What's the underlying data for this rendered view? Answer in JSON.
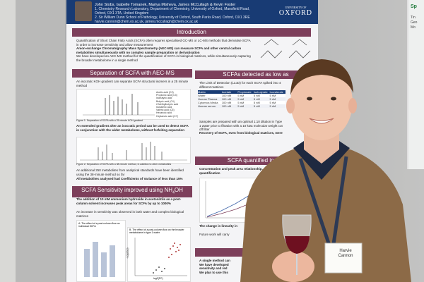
{
  "poster": {
    "affiliation_1": "1. Chemistry Research Laboratory, Department of Chemistry, University of Oxford, Mansfield Road, Oxford, OX1 3TA, United Kingdom",
    "affiliation_2": "2. Sir William Dunn School of Pathology, University of Oxford, South Parks Road, Oxford, OX1 3RE",
    "authors": "John Stobs, Isabelle Tomanek, Mariya Misheva, James McCullagh & Kevin Foster",
    "email": "harvie.cannon@chem.ox.ac.uk, james.mccullagh@chem.ox.ac.uk",
    "institution": "OXFORD",
    "institution_prefix": "UNIVERSITY OF",
    "intro_title": "Introduction",
    "intro_bullets": [
      "Quantification of Short Chain Fatty Acids (SCFA) often requires specialised GC-MS or LC-MS methods that derivatise SCFA in order to increase sensitivity and allow measurement",
      "Anion-exchange Chromatography Mass Spectrometry (AEC-MS) can measure SCFA and other central carbon metabolites simultaneously with no complex sample preparation or derivatisation",
      "We have developed an AEC-MS method for the quantification of SCFA in biological matrices, while simultaneously capturing the broader metabolome in a single method"
    ],
    "sep_title": "Separation of SCFA with AEC-MS",
    "sep_bullets": [
      "An isocratic KOH gradient can separate SCFA structural isomers in a 25 minute method",
      "An extended gradient after an isocratic period can be used to detect SCFA in conjunction with the wider metabolome, without forfeiting separation",
      "An additional 250 metabolites from analytical standards have been identified using the 38-minute method so far",
      "All metabolites analysed had Coefficients of Variance of less than 15%"
    ],
    "legend_items": [
      "Acetic acid (C2)",
      "Propionic acid (C3)",
      "Isobutyric acid",
      "Butyric acid (C4)",
      "2-Methylbutyric acid",
      "Isovaleric acid",
      "Valeric acid (C5)",
      "Hexanoic acid",
      "Heptanoic acid (C7)"
    ],
    "fig1_caption": "Figure 1: Separation of SCFA with a 25 minute KOH gradient",
    "fig2_caption": "Figure 2: Separation of SCFA with a 38 minute method, in addition to other metabolites",
    "nh4_title": "SCFA Sensitivity improved using NH",
    "nh4_sub": "4",
    "nh4_tail": "OH",
    "nh4_bullets": [
      "The addition of 10 mM ammonium hydroxide in acetonitrile as a post-column solvent increases peak areas for SCFA by up to 1000%",
      "An increase in sensitivity was observed in both water and complex biological matrices"
    ],
    "nh4_fig_a": "A.  The effect of a post-column flow on individual SCFA",
    "nh4_fig_b": "B.  The effect of a post-column flow on the broader metabolome in type 1 water",
    "axis_x": "log2(FC)",
    "axis_y": "-Log10(p)",
    "lod_title": "SCFAs detected as low as",
    "lod_text": "The Limit of Detection (LLoD) for each SCFA spiked into 4 different matrices",
    "table_headers": [
      "Matrix",
      "Acetate",
      "Propionate",
      "Isobutyrate",
      "Isovalerate"
    ],
    "table_rows": [
      [
        "Water",
        "100 nM",
        "5 nM",
        "5 nM",
        "5 nM"
      ],
      [
        "Human Plasma",
        "100 nM",
        "5 nM",
        "5 nM",
        "5 nM"
      ],
      [
        "Cytomics Media",
        "100 nM",
        "5 nM",
        "5 nM",
        "5 nM"
      ],
      [
        "Human serum",
        "100 nM",
        "5 nM",
        "5 nM",
        "5 nM"
      ]
    ],
    "lod_bullets": [
      "Samples are prepared with an optimal 1:10 dilution in Type 1 water prior to filtration with a 10 kDa molecular weight cut off filter",
      "Recovery of SCFA, even from biological matrices, were"
    ],
    "quant_title": "SCFA quantified in biol",
    "quant_bullets": [
      "Concentration and peak area relationship, allowing quantification",
      "The change in linearity in",
      "Future work will carry"
    ],
    "summary_title": "Summ",
    "summary_bullets": [
      "A single method can",
      "We have developed",
      "sensitivity and red",
      "We plan to use this"
    ]
  },
  "right_poster": {
    "heading": "Sp",
    "lines": [
      "Tin",
      "Geo",
      "Mo"
    ]
  },
  "badge": {
    "name": "Harvie",
    "surname": "Cannon"
  }
}
